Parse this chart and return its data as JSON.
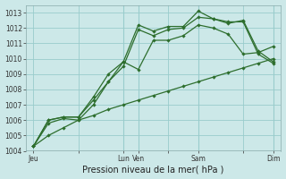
{
  "title": "",
  "xlabel": "Pression niveau de la mer( hPa )",
  "ylabel": "",
  "bg_color": "#cce8e8",
  "grid_color": "#99cccc",
  "line_color": "#2d6e2d",
  "ylim": [
    1004,
    1013.5
  ],
  "yticks": [
    1004,
    1005,
    1006,
    1007,
    1008,
    1009,
    1010,
    1011,
    1012,
    1013
  ],
  "xtick_labels": [
    "Jeu",
    "",
    "Lun",
    "Ven",
    "",
    "Sam",
    "",
    "Dim"
  ],
  "xtick_positions": [
    0,
    3,
    6,
    7,
    9,
    11,
    14,
    16
  ],
  "series1": [
    1004.3,
    1005.8,
    1006.1,
    1006.0,
    1007.0,
    1008.5,
    1009.8,
    1009.3,
    1011.2,
    1011.2,
    1011.5,
    1012.2,
    1012.0,
    1011.6,
    1010.3,
    1010.4,
    1010.8
  ],
  "series2": [
    1004.3,
    1006.0,
    1006.2,
    1006.2,
    1007.5,
    1009.0,
    1009.8,
    1012.2,
    1011.8,
    1012.1,
    1012.1,
    1013.1,
    1012.6,
    1012.3,
    1012.5,
    1010.5,
    1009.8
  ],
  "series3": [
    1004.3,
    1006.0,
    1006.2,
    1006.2,
    1007.3,
    1008.5,
    1009.5,
    1011.9,
    1011.5,
    1011.9,
    1012.0,
    1012.7,
    1012.6,
    1012.4,
    1012.4,
    1010.3,
    1009.7
  ],
  "series4": [
    1004.3,
    1005.0,
    1005.5,
    1006.0,
    1006.3,
    1006.7,
    1007.0,
    1007.3,
    1007.6,
    1007.9,
    1008.2,
    1008.5,
    1008.8,
    1009.1,
    1009.4,
    1009.7,
    1010.0
  ],
  "n_points": 17,
  "label_fontsize": 5.5,
  "xlabel_fontsize": 7
}
